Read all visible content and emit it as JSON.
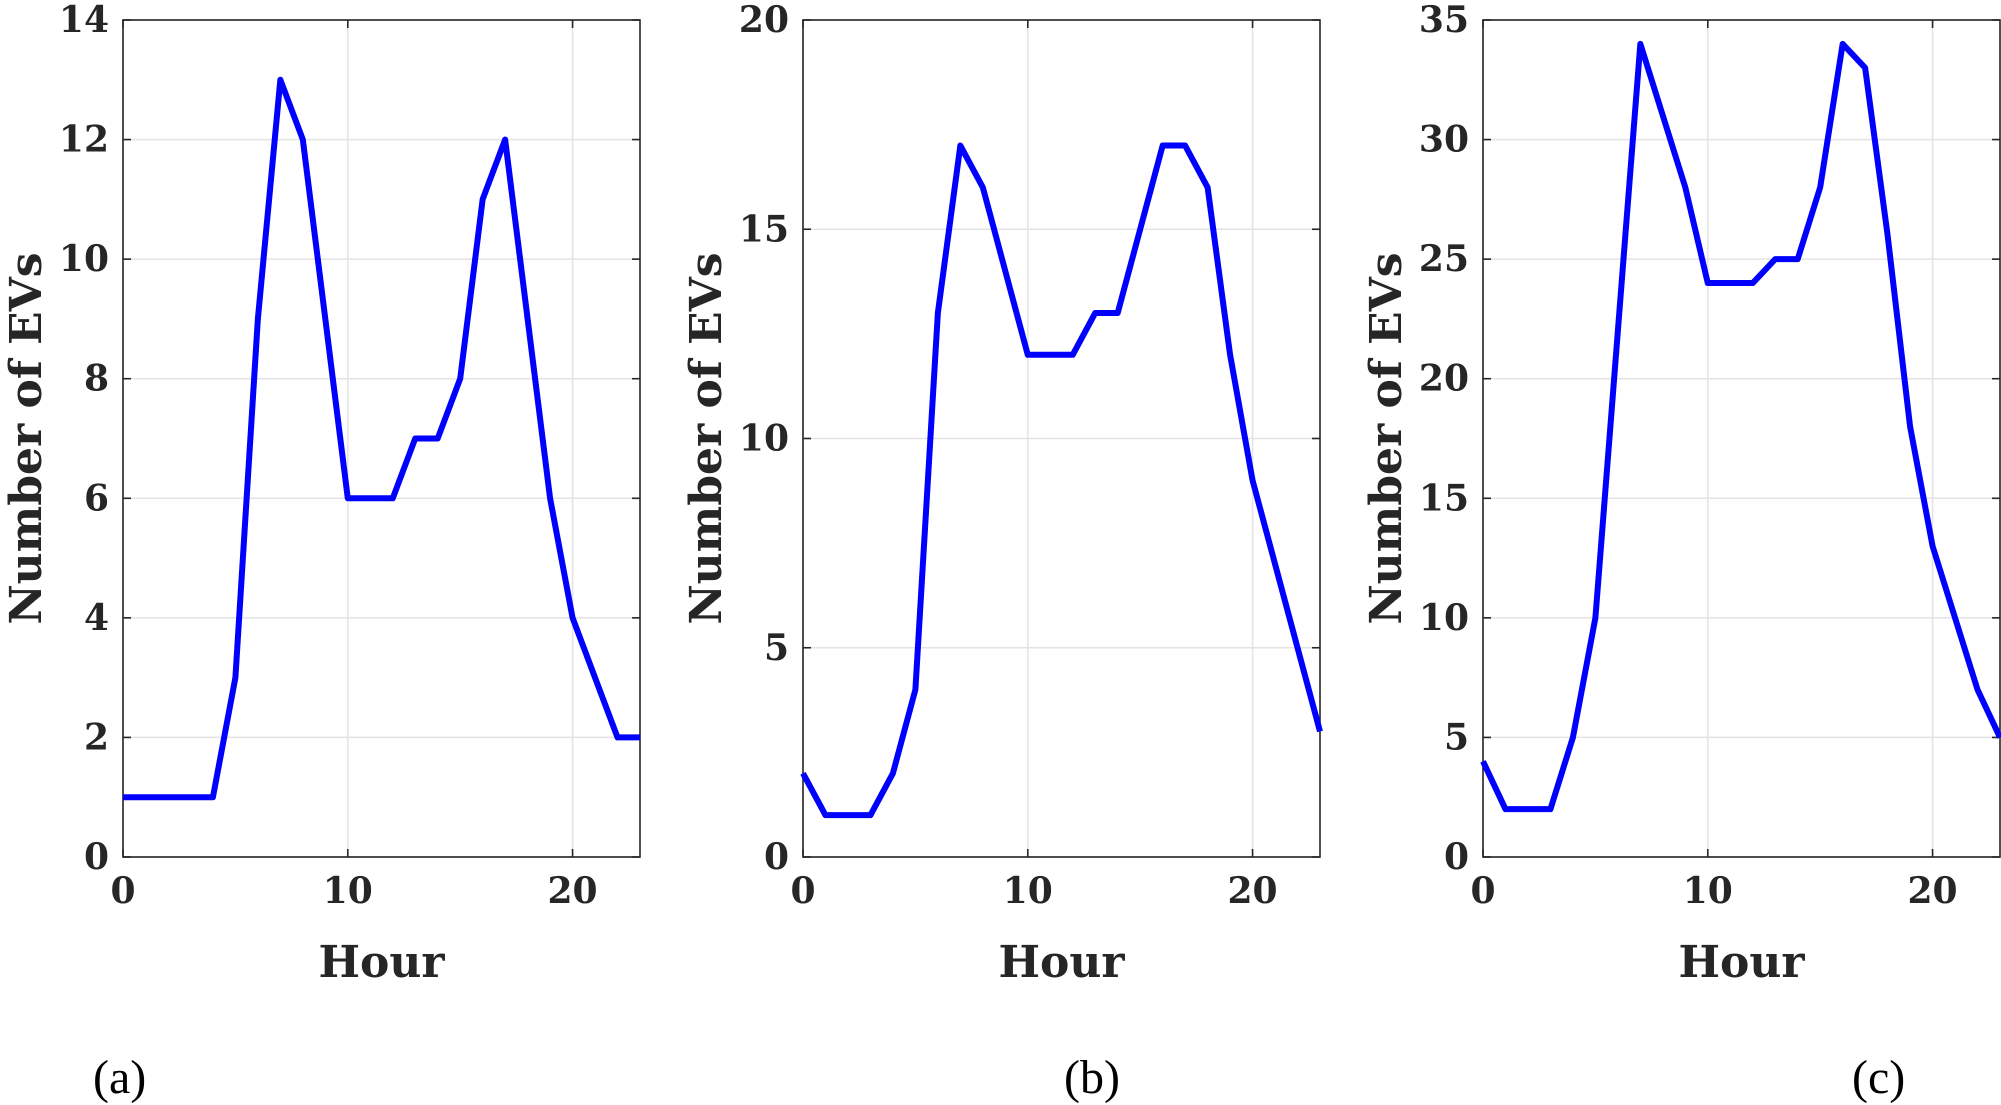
{
  "series_color": "#0000ff",
  "chart_data": [
    {
      "type": "line",
      "caption": "(a)",
      "xlabel": "Hour",
      "ylabel": "Number of EVs",
      "xlim": [
        0,
        23
      ],
      "ylim": [
        0,
        14
      ],
      "xticks": [
        0,
        10,
        20
      ],
      "yticks": [
        0,
        2,
        4,
        6,
        8,
        10,
        12,
        14
      ],
      "grid": true,
      "x": [
        0,
        1,
        2,
        3,
        4,
        5,
        6,
        7,
        8,
        9,
        10,
        11,
        12,
        13,
        14,
        15,
        16,
        17,
        18,
        19,
        20,
        21,
        22,
        23
      ],
      "values": [
        1,
        1,
        1,
        1,
        1,
        3,
        9,
        13,
        12,
        9,
        6,
        6,
        6,
        7,
        7,
        8,
        11,
        12,
        9,
        6,
        4,
        3,
        2,
        2
      ]
    },
    {
      "type": "line",
      "caption": "(b)",
      "xlabel": "Hour",
      "ylabel": "Number of EVs",
      "xlim": [
        0,
        23
      ],
      "ylim": [
        0,
        20
      ],
      "xticks": [
        0,
        10,
        20
      ],
      "yticks": [
        0,
        5,
        10,
        15,
        20
      ],
      "grid": true,
      "x": [
        0,
        1,
        2,
        3,
        4,
        5,
        6,
        7,
        8,
        9,
        10,
        11,
        12,
        13,
        14,
        15,
        16,
        17,
        18,
        19,
        20,
        21,
        22,
        23
      ],
      "values": [
        2,
        1,
        1,
        1,
        2,
        4,
        13,
        17,
        16,
        14,
        12,
        12,
        12,
        13,
        13,
        15,
        17,
        17,
        16,
        12,
        9,
        7,
        5,
        3
      ]
    },
    {
      "type": "line",
      "caption": "(c)",
      "xlabel": "Hour",
      "ylabel": "Number of EVs",
      "xlim": [
        0,
        23
      ],
      "ylim": [
        0,
        35
      ],
      "xticks": [
        0,
        10,
        20
      ],
      "yticks": [
        0,
        5,
        10,
        15,
        20,
        25,
        30,
        35
      ],
      "grid": true,
      "x": [
        0,
        1,
        2,
        3,
        4,
        5,
        6,
        7,
        8,
        9,
        10,
        11,
        12,
        13,
        14,
        15,
        16,
        17,
        18,
        19,
        20,
        21,
        22,
        23
      ],
      "values": [
        4,
        2,
        2,
        2,
        5,
        10,
        22,
        34,
        31,
        28,
        24,
        24,
        24,
        25,
        25,
        28,
        34,
        33,
        26,
        18,
        13,
        10,
        7,
        5
      ]
    }
  ]
}
